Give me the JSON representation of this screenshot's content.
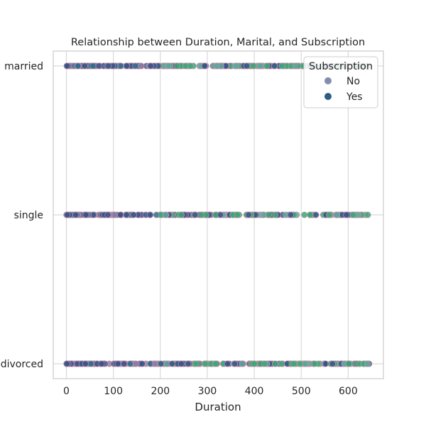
{
  "chart_data": {
    "type": "scatter",
    "title": "Relationship between Duration, Marital, and Subscription",
    "xlabel": "Duration",
    "ylabel": "",
    "xlim": [
      -28,
      675
    ],
    "x_ticks": [
      0,
      100,
      200,
      300,
      400,
      500,
      600
    ],
    "categories": [
      "married",
      "single",
      "divorced"
    ],
    "grid": true,
    "legend": {
      "title": "Subscription",
      "placement": "top-right",
      "entries": [
        {
          "label": "No",
          "color": "#7f8fad"
        },
        {
          "label": "Yes",
          "color": "#2f5d82"
        }
      ]
    },
    "marker_palette": [
      "#3a538b",
      "#2f6e8e",
      "#3aa877",
      "#5ea7a0",
      "#8f7fa6"
    ],
    "edge_color": "#c995a8",
    "series": [
      {
        "name": "married",
        "x_range": [
          0,
          645
        ],
        "count": 260
      },
      {
        "name": "single",
        "x_range": [
          0,
          645
        ],
        "count": 230
      },
      {
        "name": "divorced",
        "x_range": [
          0,
          645
        ],
        "count": 250
      }
    ]
  }
}
